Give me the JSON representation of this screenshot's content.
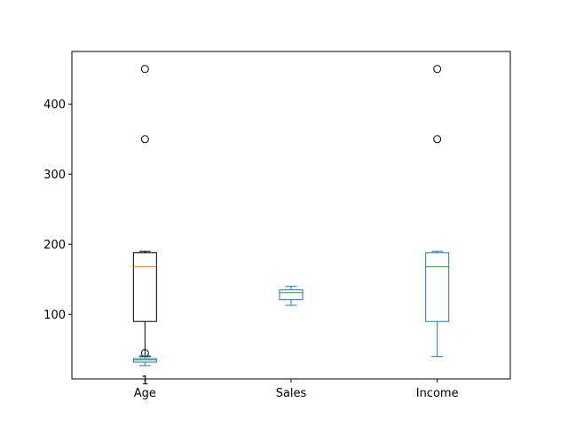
{
  "chart_data": {
    "type": "box",
    "categories": [
      "Age",
      "Sales",
      "Income"
    ],
    "ylim": [
      8,
      475
    ],
    "yticks": [
      100,
      200,
      300,
      400
    ],
    "grid": false,
    "title": "",
    "xlabel": "",
    "ylabel": "",
    "series": [
      {
        "position": 1,
        "color": "#000000",
        "median_color": "#ff7f0e",
        "box_color": "#000000",
        "q1": 90,
        "median": 168,
        "q3": 188,
        "whisker_low": 40,
        "whisker_high": 190,
        "outliers": [
          350,
          450,
          45
        ]
      },
      {
        "position": 1,
        "color": "#1f77b4",
        "median_color": "#2ca02c",
        "box_color": "#1f77b4",
        "q1": 32,
        "median": 35,
        "q3": 37,
        "whisker_low": 27,
        "whisker_high": 41,
        "outliers": []
      },
      {
        "position": 2,
        "color": "#1f77b4",
        "median_color": "#2ca02c",
        "box_color": "#1f77b4",
        "q1": 121,
        "median": 131,
        "q3": 135,
        "whisker_low": 113,
        "whisker_high": 140,
        "outliers": []
      },
      {
        "position": 3,
        "color": "#1f77b4",
        "median_color": "#2ca02c",
        "box_color": "#1f77b4",
        "q1": 90,
        "median": 168,
        "q3": 188,
        "whisker_low": 40,
        "whisker_high": 190,
        "outliers": [
          350,
          450
        ]
      }
    ],
    "overlay_text": [
      {
        "text": "1",
        "position": 1,
        "y": 7
      }
    ]
  }
}
